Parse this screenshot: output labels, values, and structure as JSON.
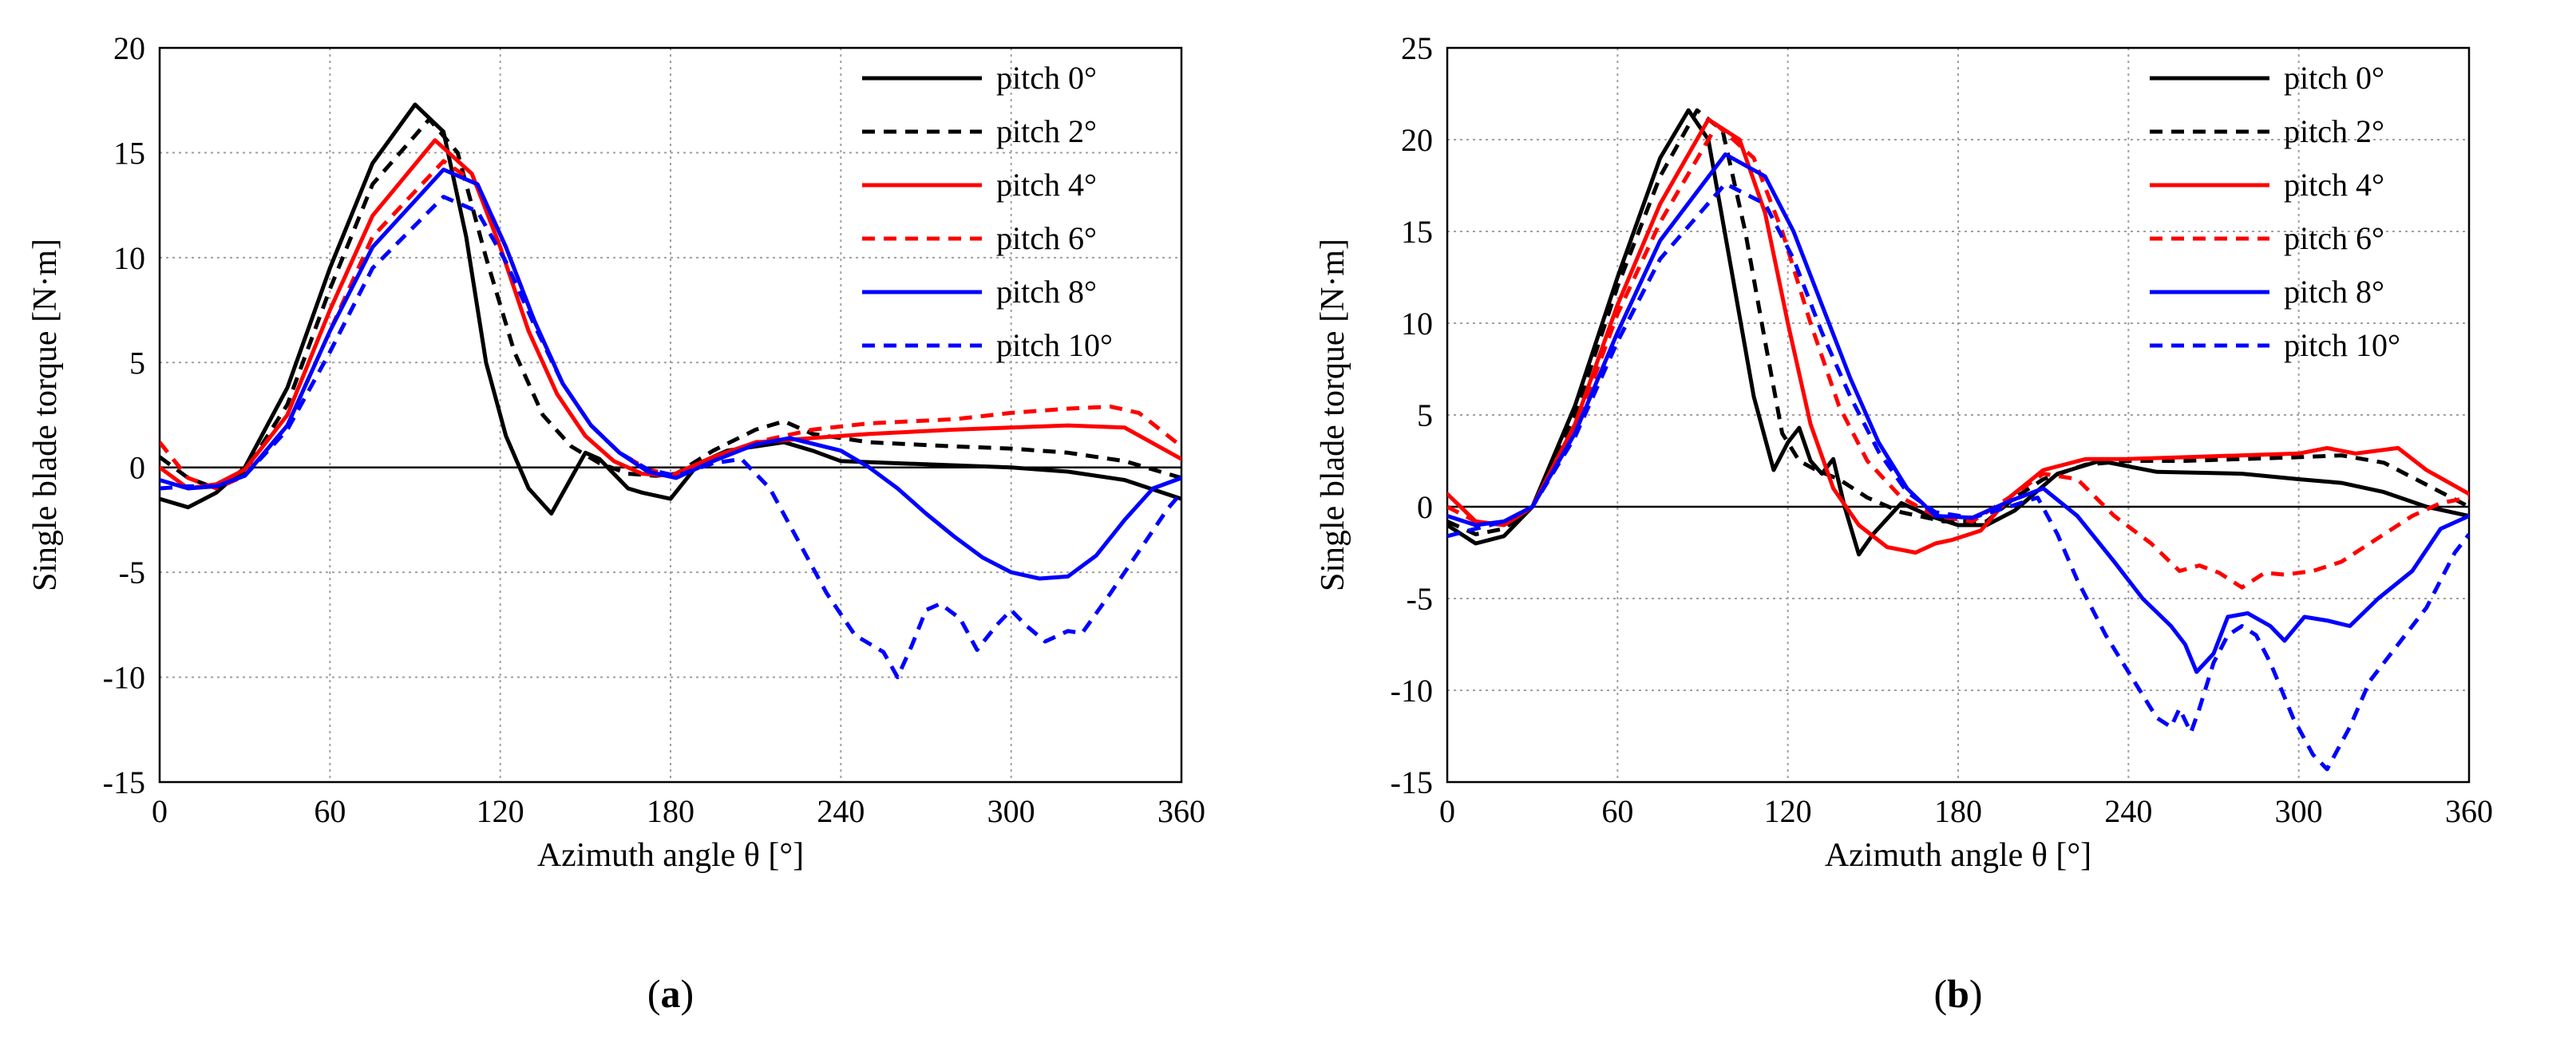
{
  "chart_data": [
    {
      "type": "line",
      "panel_label": "(a)",
      "panel_letter": "a",
      "xlabel": "Azimuth angle θ [°]",
      "ylabel": "Single blade torque [N·m]",
      "xlim": [
        0,
        360
      ],
      "ylim": [
        -15,
        20
      ],
      "xticks": [
        0,
        60,
        120,
        180,
        240,
        300,
        360
      ],
      "yticks": [
        -15,
        -10,
        -5,
        0,
        5,
        10,
        15,
        20
      ],
      "grid": true,
      "legend_position": "top-right",
      "series": [
        {
          "name": "pitch 0°",
          "color": "#000000",
          "dash": "solid",
          "x": [
            0,
            10,
            20,
            30,
            45,
            60,
            75,
            90,
            100,
            108,
            115,
            122,
            130,
            138,
            145,
            150,
            155,
            160,
            165,
            170,
            180,
            190,
            200,
            210,
            220,
            230,
            240,
            260,
            280,
            300,
            320,
            340,
            360
          ],
          "y": [
            -1.5,
            -1.9,
            -1.2,
            0.0,
            3.8,
            9.5,
            14.5,
            17.3,
            16.0,
            11.0,
            5.0,
            1.5,
            -1.0,
            -2.2,
            -0.5,
            0.7,
            0.4,
            -0.3,
            -1.0,
            -1.2,
            -1.5,
            0.2,
            0.8,
            1.0,
            1.2,
            0.8,
            0.3,
            0.2,
            0.1,
            0.0,
            -0.2,
            -0.6,
            -1.5
          ]
        },
        {
          "name": "pitch 2°",
          "color": "#000000",
          "dash": "dashed",
          "x": [
            0,
            10,
            20,
            30,
            45,
            60,
            75,
            95,
            105,
            115,
            125,
            135,
            145,
            155,
            165,
            175,
            182,
            195,
            210,
            220,
            230,
            250,
            280,
            300,
            320,
            340,
            360
          ],
          "y": [
            0.5,
            -0.5,
            -1.0,
            -0.2,
            3.0,
            8.5,
            13.5,
            16.6,
            15.0,
            10.0,
            5.5,
            2.5,
            1.0,
            0.2,
            -0.3,
            -0.4,
            -0.3,
            0.8,
            1.8,
            2.2,
            1.6,
            1.2,
            1.0,
            0.9,
            0.7,
            0.3,
            -0.5
          ]
        },
        {
          "name": "pitch 4°",
          "color": "#ff0000",
          "dash": "solid",
          "x": [
            0,
            10,
            20,
            30,
            45,
            60,
            75,
            97,
            110,
            120,
            130,
            140,
            150,
            160,
            170,
            180,
            195,
            210,
            230,
            250,
            280,
            300,
            320,
            340,
            360
          ],
          "y": [
            0.0,
            -1.0,
            -0.8,
            -0.1,
            2.5,
            7.5,
            12.0,
            15.6,
            14.0,
            10.5,
            6.5,
            3.5,
            1.5,
            0.3,
            -0.3,
            -0.4,
            0.5,
            1.2,
            1.4,
            1.6,
            1.8,
            1.9,
            2.0,
            1.9,
            0.4
          ]
        },
        {
          "name": "pitch 6°",
          "color": "#ff0000",
          "dash": "dashed",
          "x": [
            0,
            10,
            20,
            30,
            45,
            60,
            75,
            100,
            112,
            122,
            132,
            142,
            152,
            162,
            172,
            182,
            195,
            210,
            230,
            250,
            280,
            300,
            320,
            335,
            345,
            360
          ],
          "y": [
            1.2,
            -0.5,
            -1.0,
            -0.4,
            2.0,
            6.5,
            11.0,
            14.6,
            13.5,
            10.5,
            7.0,
            4.0,
            2.0,
            0.7,
            -0.1,
            -0.4,
            0.4,
            1.2,
            1.8,
            2.1,
            2.3,
            2.6,
            2.8,
            2.9,
            2.6,
            1.0
          ]
        },
        {
          "name": "pitch 8°",
          "color": "#0000ff",
          "dash": "solid",
          "x": [
            0,
            10,
            20,
            30,
            45,
            60,
            75,
            100,
            112,
            122,
            132,
            142,
            152,
            162,
            172,
            182,
            195,
            210,
            222,
            240,
            250,
            260,
            270,
            280,
            290,
            300,
            310,
            320,
            330,
            340,
            350,
            360
          ],
          "y": [
            -0.6,
            -1.0,
            -0.9,
            -0.4,
            2.0,
            6.5,
            10.5,
            14.2,
            13.5,
            10.5,
            7.0,
            4.0,
            2.0,
            0.7,
            -0.2,
            -0.5,
            0.3,
            1.1,
            1.4,
            0.8,
            0.0,
            -1.0,
            -2.2,
            -3.3,
            -4.3,
            -5.0,
            -5.3,
            -5.2,
            -4.2,
            -2.5,
            -1.0,
            -0.5
          ]
        },
        {
          "name": "pitch 10°",
          "color": "#0000ff",
          "dash": "dashed",
          "x": [
            0,
            10,
            20,
            30,
            45,
            60,
            75,
            100,
            112,
            122,
            132,
            142,
            152,
            162,
            172,
            182,
            195,
            205,
            215,
            225,
            235,
            245,
            255,
            260,
            265,
            270,
            275,
            282,
            288,
            295,
            300,
            305,
            312,
            320,
            325,
            335,
            345,
            355,
            360
          ],
          "y": [
            -1.0,
            -0.9,
            -0.9,
            -0.4,
            1.8,
            5.5,
            9.5,
            12.9,
            12.2,
            9.8,
            6.8,
            4.0,
            2.0,
            0.7,
            -0.1,
            -0.4,
            0.2,
            0.4,
            -1.0,
            -3.5,
            -6.0,
            -8.0,
            -8.8,
            -10.0,
            -8.5,
            -6.8,
            -6.5,
            -7.2,
            -8.7,
            -7.5,
            -6.8,
            -7.5,
            -8.3,
            -7.8,
            -7.9,
            -6.0,
            -4.0,
            -2.0,
            -1.2
          ]
        }
      ]
    },
    {
      "type": "line",
      "panel_label": "(b)",
      "panel_letter": "b",
      "xlabel": "Azimuth angle θ [°]",
      "ylabel": "Single blade torque [N·m]",
      "xlim": [
        0,
        360
      ],
      "ylim": [
        -15,
        25
      ],
      "xticks": [
        0,
        60,
        120,
        180,
        240,
        300,
        360
      ],
      "yticks": [
        -15,
        -10,
        -5,
        0,
        5,
        10,
        15,
        20,
        25
      ],
      "grid": true,
      "legend_position": "top-right",
      "series": [
        {
          "name": "pitch 0°",
          "color": "#000000",
          "dash": "solid",
          "x": [
            0,
            10,
            20,
            30,
            45,
            60,
            75,
            85,
            92,
            100,
            108,
            115,
            120,
            124,
            128,
            132,
            136,
            140,
            145,
            150,
            160,
            170,
            180,
            190,
            200,
            215,
            230,
            250,
            280,
            300,
            315,
            330,
            345,
            360
          ],
          "y": [
            -1.0,
            -2.0,
            -1.6,
            0.0,
            5.5,
            12.5,
            19.0,
            21.6,
            20.0,
            13.0,
            6.0,
            2.0,
            3.5,
            4.3,
            2.5,
            1.8,
            2.6,
            0.0,
            -2.6,
            -1.5,
            0.2,
            -0.5,
            -1.0,
            -1.0,
            -0.2,
            1.8,
            2.5,
            1.9,
            1.8,
            1.5,
            1.3,
            0.8,
            0.0,
            -0.5
          ]
        },
        {
          "name": "pitch 2°",
          "color": "#000000",
          "dash": "dashed",
          "x": [
            0,
            10,
            20,
            30,
            45,
            60,
            75,
            88,
            97,
            105,
            112,
            118,
            124,
            130,
            138,
            148,
            160,
            175,
            190,
            200,
            210,
            225,
            240,
            260,
            280,
            300,
            315,
            330,
            345,
            360
          ],
          "y": [
            -0.8,
            -1.5,
            -1.2,
            0.0,
            5.0,
            12.0,
            18.0,
            21.6,
            20.5,
            15.0,
            9.0,
            4.0,
            2.5,
            2.0,
            1.5,
            0.5,
            -0.3,
            -0.8,
            -0.8,
            0.5,
            1.5,
            2.3,
            2.5,
            2.5,
            2.6,
            2.7,
            2.8,
            2.4,
            1.2,
            0.0
          ]
        },
        {
          "name": "pitch 4°",
          "color": "#ff0000",
          "dash": "solid",
          "x": [
            0,
            10,
            20,
            30,
            45,
            60,
            75,
            92,
            103,
            112,
            120,
            128,
            136,
            145,
            155,
            165,
            172,
            178,
            188,
            198,
            210,
            225,
            240,
            260,
            280,
            300,
            310,
            320,
            335,
            345,
            360
          ],
          "y": [
            0.7,
            -0.8,
            -1.0,
            0.0,
            4.5,
            11.0,
            16.5,
            21.1,
            20.0,
            16.0,
            10.0,
            4.5,
            1.0,
            -1.0,
            -2.2,
            -2.5,
            -2.0,
            -1.8,
            -1.3,
            0.5,
            2.0,
            2.6,
            2.6,
            2.7,
            2.8,
            2.9,
            3.2,
            2.9,
            3.2,
            2.0,
            0.7
          ]
        },
        {
          "name": "pitch 6°",
          "color": "#ff0000",
          "dash": "dashed",
          "x": [
            0,
            10,
            20,
            30,
            45,
            60,
            75,
            95,
            108,
            118,
            128,
            138,
            148,
            160,
            172,
            185,
            198,
            210,
            222,
            235,
            248,
            258,
            265,
            272,
            280,
            288,
            295,
            305,
            315,
            325,
            340,
            350,
            360
          ],
          "y": [
            0.0,
            -0.8,
            -1.0,
            0.0,
            4.2,
            10.5,
            15.5,
            20.8,
            19.0,
            15.0,
            10.0,
            5.5,
            2.5,
            0.5,
            -0.5,
            -0.8,
            0.5,
            1.8,
            1.5,
            -0.5,
            -2.0,
            -3.5,
            -3.2,
            -3.6,
            -4.4,
            -3.6,
            -3.7,
            -3.5,
            -3.0,
            -2.0,
            -0.5,
            0.2,
            0.5
          ]
        },
        {
          "name": "pitch 8°",
          "color": "#0000ff",
          "dash": "solid",
          "x": [
            0,
            10,
            20,
            30,
            45,
            60,
            75,
            98,
            112,
            122,
            132,
            142,
            152,
            162,
            172,
            185,
            198,
            210,
            222,
            235,
            245,
            255,
            260,
            264,
            270,
            275,
            282,
            290,
            295,
            302,
            310,
            318,
            328,
            340,
            350,
            360
          ],
          "y": [
            -0.5,
            -1.0,
            -0.8,
            0.0,
            4.0,
            9.5,
            14.5,
            19.2,
            18.0,
            15.0,
            11.0,
            7.0,
            3.5,
            1.0,
            -0.5,
            -0.6,
            0.3,
            1.0,
            -0.5,
            -3.0,
            -5.0,
            -6.5,
            -7.5,
            -9.0,
            -8.0,
            -6.0,
            -5.8,
            -6.5,
            -7.3,
            -6.0,
            -6.2,
            -6.5,
            -5.0,
            -3.5,
            -1.2,
            -0.5
          ]
        },
        {
          "name": "pitch 10°",
          "color": "#0000ff",
          "dash": "dashed",
          "x": [
            0,
            10,
            20,
            30,
            45,
            60,
            75,
            98,
            112,
            122,
            132,
            142,
            152,
            162,
            172,
            185,
            198,
            208,
            215,
            222,
            232,
            242,
            250,
            255,
            258,
            262,
            265,
            270,
            275,
            280,
            285,
            290,
            298,
            305,
            310,
            318,
            325,
            335,
            345,
            355,
            360
          ],
          "y": [
            -1.6,
            -1.2,
            -0.8,
            0.0,
            3.8,
            9.0,
            13.5,
            17.6,
            16.5,
            13.5,
            9.5,
            6.0,
            3.0,
            0.8,
            -0.3,
            -0.6,
            0.0,
            0.5,
            -1.5,
            -4.0,
            -7.0,
            -9.5,
            -11.5,
            -12.0,
            -11.0,
            -12.3,
            -11.0,
            -8.5,
            -7.0,
            -6.5,
            -7.0,
            -8.5,
            -11.5,
            -13.5,
            -14.3,
            -12.0,
            -9.5,
            -7.5,
            -5.5,
            -2.5,
            -1.5
          ]
        }
      ]
    }
  ]
}
